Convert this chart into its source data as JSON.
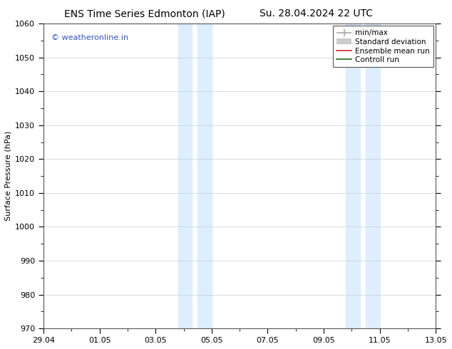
{
  "title_left": "ENS Time Series Edmonton (IAP)",
  "title_right": "Su. 28.04.2024 22 UTC",
  "ylabel": "Surface Pressure (hPa)",
  "ylim": [
    970,
    1060
  ],
  "yticks": [
    970,
    980,
    990,
    1000,
    1010,
    1020,
    1030,
    1040,
    1050,
    1060
  ],
  "xtick_labels": [
    "29.04",
    "01.05",
    "03.05",
    "05.05",
    "07.05",
    "09.05",
    "11.05",
    "13.05"
  ],
  "xtick_positions": [
    0,
    2,
    4,
    6,
    8,
    10,
    12,
    14
  ],
  "xlim": [
    0,
    14
  ],
  "shaded_bands": [
    {
      "x_start": 4.8,
      "x_end": 5.3
    },
    {
      "x_start": 5.5,
      "x_end": 6.0
    },
    {
      "x_start": 10.8,
      "x_end": 11.3
    },
    {
      "x_start": 11.5,
      "x_end": 12.0
    }
  ],
  "shaded_color": "#ddeeff",
  "watermark_text": "© weatheronline.in",
  "watermark_color": "#3355cc",
  "legend_items": [
    {
      "label": "min/max",
      "color": "#aaaaaa",
      "linewidth": 1.2
    },
    {
      "label": "Standard deviation",
      "color": "#cccccc",
      "linewidth": 6
    },
    {
      "label": "Ensemble mean run",
      "color": "#dd2222",
      "linewidth": 1.2
    },
    {
      "label": "Controll run",
      "color": "#226622",
      "linewidth": 1.2
    }
  ],
  "bg_color": "#ffffff",
  "grid_color": "#cccccc",
  "spine_color": "#555555",
  "title_fontsize": 10,
  "axis_label_fontsize": 8,
  "tick_fontsize": 8,
  "legend_fontsize": 7.5
}
